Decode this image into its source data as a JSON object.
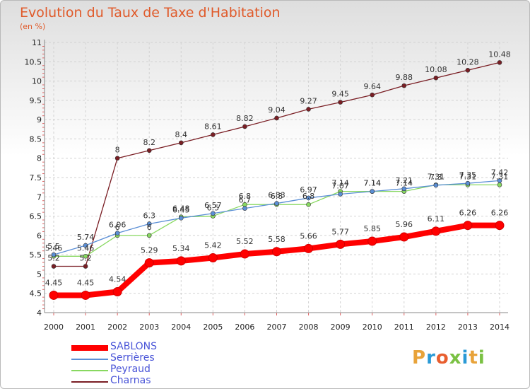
{
  "header": {
    "title": "Evolution du Taux de Taxe d'Habitation",
    "subtitle": "(en %)"
  },
  "logo": {
    "text": "Proxiti",
    "colors": [
      "#e8a33a",
      "#2a9ad6",
      "#e85e2f",
      "#7ac143",
      "#2a9ad6",
      "#e8a33a",
      "#7ac143"
    ]
  },
  "chart_data": {
    "type": "line",
    "title": "Evolution du Taux de Taxe d'Habitation",
    "subtitle": "(en %)",
    "x": [
      2000,
      2001,
      2002,
      2003,
      2004,
      2005,
      2006,
      2007,
      2008,
      2009,
      2010,
      2011,
      2012,
      2013,
      2014
    ],
    "x_tick_labels": [
      "2000",
      "2001",
      "2002",
      "2003",
      "2004",
      "2005",
      "2006",
      "2007",
      "2008",
      "2009",
      "2010",
      "2011",
      "2012",
      "2013",
      "2014"
    ],
    "ylim": [
      4,
      11
    ],
    "y_ticks": [
      4,
      4.5,
      5,
      5.5,
      6,
      6.5,
      7,
      7.5,
      8,
      8.5,
      9,
      9.5,
      10,
      10.5,
      11
    ],
    "y_tick_labels": [
      "4",
      "4.5",
      "5",
      "5.5",
      "6",
      "6.5",
      "7",
      "7.5",
      "8",
      "8.5",
      "9",
      "9.5",
      "10",
      "10.5",
      "11"
    ],
    "grid": true,
    "legend_position": "bottom-left",
    "series": [
      {
        "name": "SABLONS",
        "color": "#ff0000",
        "values": [
          4.45,
          4.45,
          4.54,
          5.29,
          5.34,
          5.42,
          5.52,
          5.58,
          5.66,
          5.77,
          5.85,
          5.96,
          6.11,
          6.26,
          6.26
        ],
        "labels": [
          "4.45",
          "4.45",
          "4.54",
          "5.29",
          "5.34",
          "5.42",
          "5.52",
          "5.58",
          "5.66",
          "5.77",
          "5.85",
          "5.96",
          "6.11",
          "6.26",
          "6.26"
        ]
      },
      {
        "name": "Serrières",
        "color": "#5b8fd6",
        "values": [
          5.5,
          5.74,
          6.06,
          6.3,
          6.45,
          6.57,
          6.7,
          6.83,
          6.97,
          7.07,
          7.14,
          7.21,
          7.3,
          7.35,
          7.42
        ],
        "labels": [
          "5.5",
          "5.74",
          "6.06",
          "6.3",
          "6.45",
          "6.57",
          "6.7",
          "6.83",
          "6.97",
          "7.07",
          "7.14",
          "7.21",
          "7.3",
          "7.35",
          "7.42"
        ]
      },
      {
        "name": "Peyraud",
        "color": "#88d860",
        "values": [
          5.46,
          5.46,
          6.0,
          6.0,
          6.48,
          6.5,
          6.8,
          6.8,
          6.8,
          7.14,
          7.14,
          7.14,
          7.31,
          7.31,
          7.31
        ],
        "labels": [
          "5.46",
          "5.46",
          "6",
          "6",
          "6.48",
          "6.5",
          "6.8",
          "6.8",
          "6.8",
          "7.14",
          "7.14",
          "7.14",
          "7.31",
          "7.31",
          "7.31"
        ]
      },
      {
        "name": "Charnas",
        "color": "#7a1e24",
        "values": [
          5.2,
          5.2,
          8.0,
          8.2,
          8.4,
          8.61,
          8.82,
          9.04,
          9.27,
          9.45,
          9.64,
          9.88,
          10.08,
          10.28,
          10.48
        ],
        "labels": [
          "5.2",
          "5.2",
          "8",
          "8.2",
          "8.4",
          "8.61",
          "8.82",
          "9.04",
          "9.27",
          "9.45",
          "9.64",
          "9.88",
          "10.08",
          "10.28",
          "10.48"
        ]
      }
    ]
  }
}
